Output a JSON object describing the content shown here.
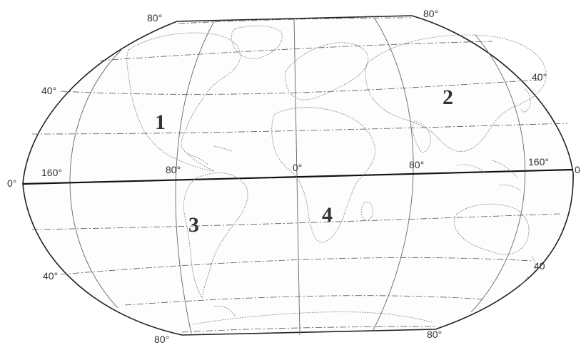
{
  "map": {
    "latitude_labels": {
      "north_80_left": "80",
      "north_80_right": "80",
      "north_40_left": "40",
      "north_40_right": "40",
      "equator_left": "0",
      "equator_right": "0",
      "south_40_left": "40",
      "south_40_right": "40",
      "south_80_left": "80",
      "south_80_right": "80"
    },
    "longitude_labels": {
      "lon_160_west": "160",
      "lon_80_west": "80",
      "lon_0": "0",
      "lon_80_east": "80",
      "lon_160_east": "160"
    },
    "degree_symbol": "°",
    "regions": [
      {
        "id": "1",
        "label": "1"
      },
      {
        "id": "2",
        "label": "2"
      },
      {
        "id": "3",
        "label": "3"
      },
      {
        "id": "4",
        "label": "4"
      }
    ]
  }
}
